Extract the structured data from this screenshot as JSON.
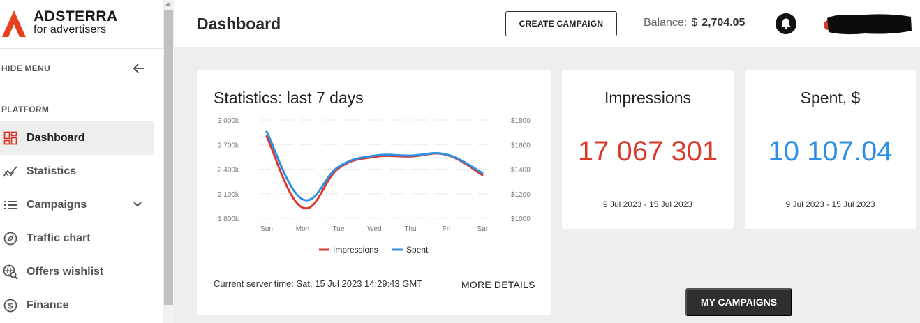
{
  "brand": {
    "name": "ADSTERRA",
    "tagline": "for advertisers",
    "logo_color": "#e8401c"
  },
  "sidebar": {
    "hide_menu_label": "HIDE MENU",
    "section_label": "PLATFORM",
    "items": [
      {
        "label": "Dashboard",
        "icon": "dashboard-grid-icon",
        "active": true
      },
      {
        "label": "Statistics",
        "icon": "statistics-icon"
      },
      {
        "label": "Campaigns",
        "icon": "list-icon",
        "expandable": true
      },
      {
        "label": "Traffic chart",
        "icon": "compass-icon"
      },
      {
        "label": "Offers wishlist",
        "icon": "globe-search-icon"
      },
      {
        "label": "Finance",
        "icon": "dollar-circle-icon"
      }
    ]
  },
  "header": {
    "title": "Dashboard",
    "create_button": "CREATE CAMPAIGN",
    "balance_label": "Balance:",
    "balance_currency": "$",
    "balance_amount": "2,704.05"
  },
  "stats": {
    "title": "Statistics: last 7 days",
    "server_time": "Current server time: Sat, 15 Jul 2023 14:29:43 GMT",
    "more_details": "MORE DETAILS"
  },
  "chart_data": {
    "type": "line",
    "x": [
      "Sun",
      "Mon",
      "Tue",
      "Wed",
      "Thu",
      "Fri",
      "Sat"
    ],
    "y_left_ticks": [
      "3 000k",
      "2 700k",
      "2 400k",
      "2 100k",
      "1 800k"
    ],
    "y_right_ticks": [
      "$1800",
      "$1600",
      "$1400",
      "$1200",
      "$1000"
    ],
    "y_left_range": [
      1800000,
      3000000
    ],
    "y_right_range": [
      1000,
      1800
    ],
    "series": [
      {
        "name": "Impressions",
        "axis": "left",
        "color": "#d9392b",
        "values": [
          2800000,
          1930000,
          2410000,
          2550000,
          2555000,
          2575000,
          2330000
        ]
      },
      {
        "name": "Spent",
        "axis": "right",
        "color": "#2e8fe6",
        "values": [
          1705,
          1155,
          1420,
          1510,
          1510,
          1520,
          1370
        ]
      }
    ],
    "legend_position": "bottom",
    "grid": true
  },
  "metrics": {
    "impressions": {
      "title": "Impressions",
      "value": "17 067 301",
      "range": "9 Jul 2023 - 15 Jul 2023",
      "color": "#d9392b"
    },
    "spent": {
      "title": "Spent, $",
      "value": "10 107.04",
      "range": "9 Jul 2023 - 15 Jul 2023",
      "color": "#2e8fe6"
    }
  },
  "my_campaigns_button": "MY CAMPAIGNS"
}
